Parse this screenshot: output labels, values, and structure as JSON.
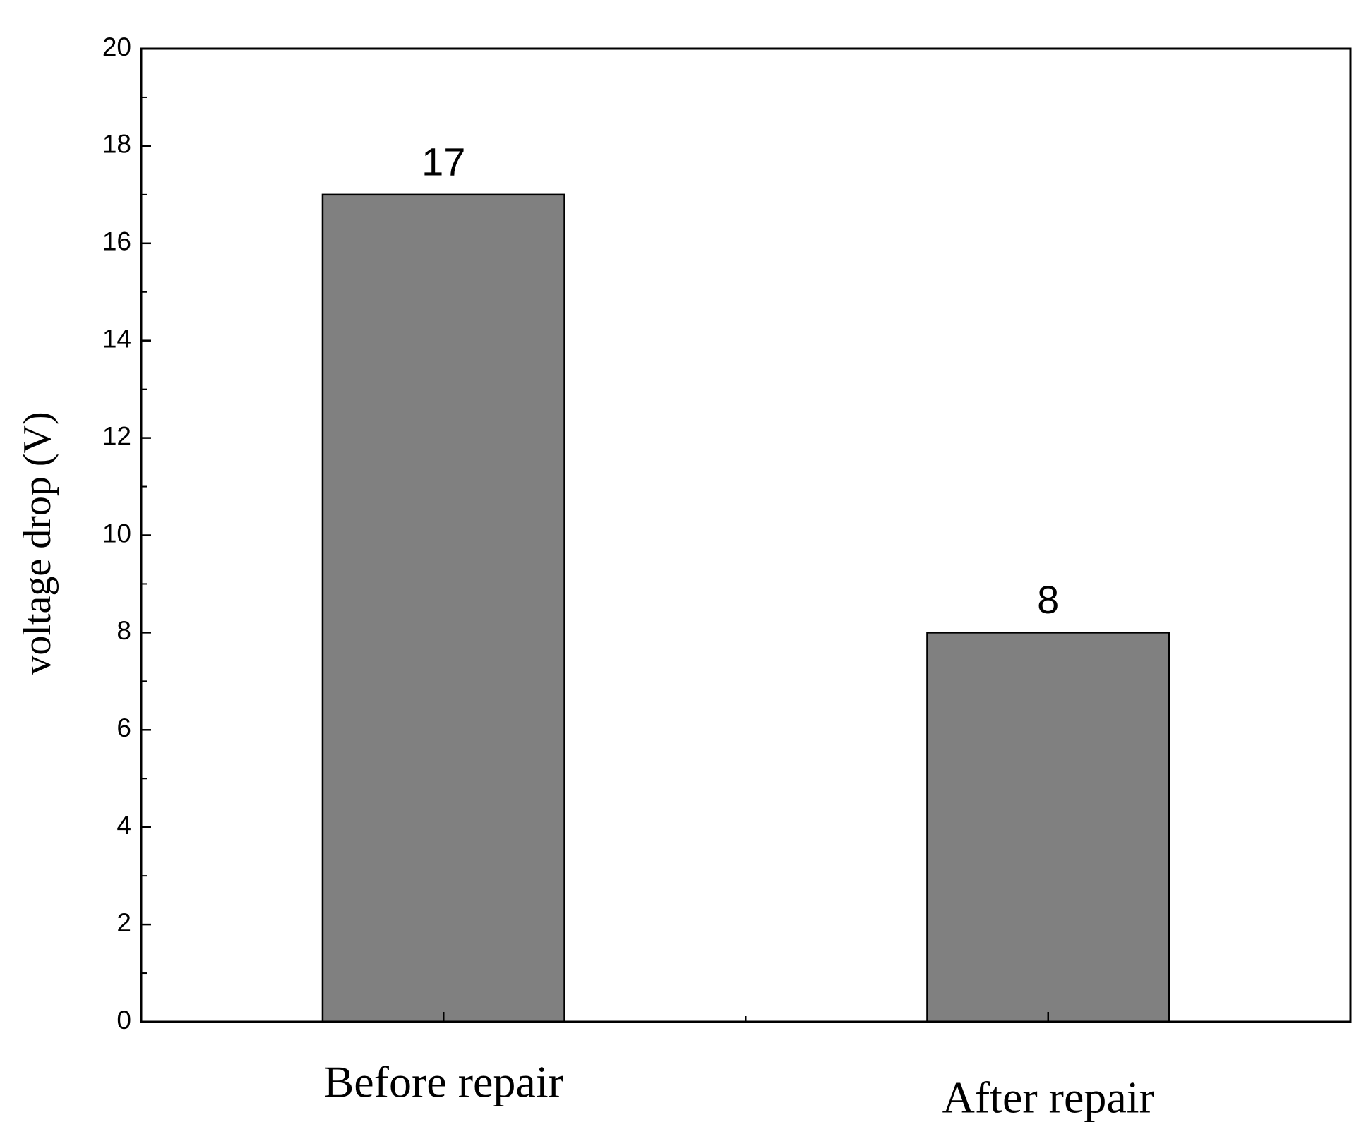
{
  "chart_data": {
    "type": "bar",
    "y_label": "voltage drop (V)",
    "categories": [
      "Before repair",
      "After repair"
    ],
    "values": [
      17,
      8
    ],
    "color": "#808080",
    "ylim": [
      0,
      20
    ],
    "yticks": [
      0,
      2,
      4,
      6,
      8,
      10,
      12,
      14,
      16,
      18,
      20
    ],
    "grid": false
  }
}
